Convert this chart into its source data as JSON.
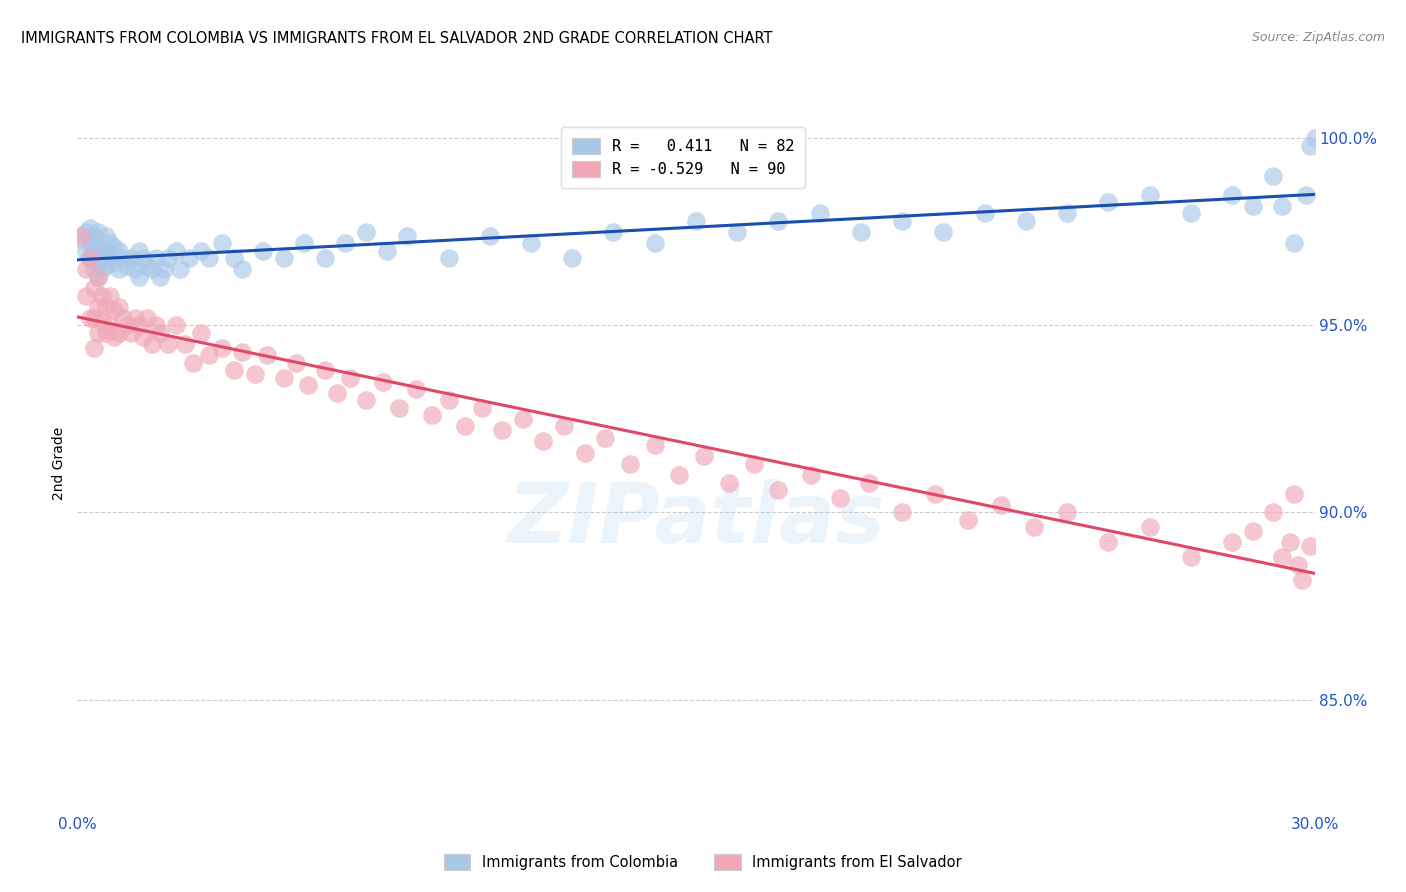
{
  "title": "IMMIGRANTS FROM COLOMBIA VS IMMIGRANTS FROM EL SALVADOR 2ND GRADE CORRELATION CHART",
  "source": "Source: ZipAtlas.com",
  "ylabel": "2nd Grade",
  "legend_colombia": "R =   0.411   N = 82",
  "legend_salvador": "R = -0.529   N = 90",
  "legend_label_colombia": "Immigrants from Colombia",
  "legend_label_salvador": "Immigrants from El Salvador",
  "colombia_color": "#a8c8e8",
  "salvador_color": "#f0a8b8",
  "colombia_line_color": "#1a4fb0",
  "salvador_line_color": "#e04868",
  "xlim": [
    0.0,
    0.3
  ],
  "ylim": [
    0.82,
    1.006
  ],
  "right_ytick_vals": [
    1.0,
    0.95,
    0.9,
    0.85
  ],
  "right_ytick_labels": [
    "100.0%",
    "95.0%",
    "90.0%",
    "85.0%"
  ],
  "colombia_x": [
    0.001,
    0.002,
    0.002,
    0.003,
    0.003,
    0.003,
    0.004,
    0.004,
    0.004,
    0.004,
    0.005,
    0.005,
    0.005,
    0.005,
    0.006,
    0.006,
    0.006,
    0.007,
    0.007,
    0.007,
    0.008,
    0.008,
    0.009,
    0.009,
    0.01,
    0.01,
    0.011,
    0.012,
    0.013,
    0.014,
    0.015,
    0.015,
    0.016,
    0.017,
    0.018,
    0.019,
    0.02,
    0.021,
    0.022,
    0.024,
    0.025,
    0.027,
    0.03,
    0.032,
    0.035,
    0.038,
    0.04,
    0.045,
    0.05,
    0.055,
    0.06,
    0.065,
    0.07,
    0.075,
    0.08,
    0.09,
    0.1,
    0.11,
    0.12,
    0.13,
    0.14,
    0.15,
    0.16,
    0.17,
    0.18,
    0.19,
    0.2,
    0.21,
    0.22,
    0.23,
    0.24,
    0.25,
    0.26,
    0.27,
    0.28,
    0.285,
    0.29,
    0.292,
    0.295,
    0.298,
    0.299,
    0.3
  ],
  "colombia_y": [
    0.973,
    0.97,
    0.975,
    0.968,
    0.972,
    0.976,
    0.965,
    0.97,
    0.974,
    0.968,
    0.963,
    0.967,
    0.971,
    0.975,
    0.965,
    0.97,
    0.968,
    0.966,
    0.97,
    0.974,
    0.968,
    0.972,
    0.967,
    0.971,
    0.965,
    0.97,
    0.968,
    0.966,
    0.968,
    0.965,
    0.963,
    0.97,
    0.968,
    0.966,
    0.965,
    0.968,
    0.963,
    0.965,
    0.968,
    0.97,
    0.965,
    0.968,
    0.97,
    0.968,
    0.972,
    0.968,
    0.965,
    0.97,
    0.968,
    0.972,
    0.968,
    0.972,
    0.975,
    0.97,
    0.974,
    0.968,
    0.974,
    0.972,
    0.968,
    0.975,
    0.972,
    0.978,
    0.975,
    0.978,
    0.98,
    0.975,
    0.978,
    0.975,
    0.98,
    0.978,
    0.98,
    0.983,
    0.985,
    0.98,
    0.985,
    0.982,
    0.99,
    0.982,
    0.972,
    0.985,
    0.998,
    1.0
  ],
  "salvador_x": [
    0.001,
    0.002,
    0.002,
    0.003,
    0.003,
    0.004,
    0.004,
    0.004,
    0.005,
    0.005,
    0.005,
    0.006,
    0.006,
    0.007,
    0.007,
    0.008,
    0.008,
    0.009,
    0.009,
    0.01,
    0.01,
    0.011,
    0.012,
    0.013,
    0.014,
    0.015,
    0.016,
    0.017,
    0.018,
    0.019,
    0.02,
    0.022,
    0.024,
    0.026,
    0.028,
    0.03,
    0.032,
    0.035,
    0.038,
    0.04,
    0.043,
    0.046,
    0.05,
    0.053,
    0.056,
    0.06,
    0.063,
    0.066,
    0.07,
    0.074,
    0.078,
    0.082,
    0.086,
    0.09,
    0.094,
    0.098,
    0.103,
    0.108,
    0.113,
    0.118,
    0.123,
    0.128,
    0.134,
    0.14,
    0.146,
    0.152,
    0.158,
    0.164,
    0.17,
    0.178,
    0.185,
    0.192,
    0.2,
    0.208,
    0.216,
    0.224,
    0.232,
    0.24,
    0.25,
    0.26,
    0.27,
    0.28,
    0.285,
    0.29,
    0.292,
    0.294,
    0.295,
    0.296,
    0.297,
    0.299
  ],
  "salvador_y": [
    0.974,
    0.965,
    0.958,
    0.968,
    0.952,
    0.96,
    0.952,
    0.944,
    0.963,
    0.955,
    0.948,
    0.958,
    0.951,
    0.955,
    0.948,
    0.958,
    0.95,
    0.954,
    0.947,
    0.955,
    0.948,
    0.952,
    0.95,
    0.948,
    0.952,
    0.95,
    0.947,
    0.952,
    0.945,
    0.95,
    0.948,
    0.945,
    0.95,
    0.945,
    0.94,
    0.948,
    0.942,
    0.944,
    0.938,
    0.943,
    0.937,
    0.942,
    0.936,
    0.94,
    0.934,
    0.938,
    0.932,
    0.936,
    0.93,
    0.935,
    0.928,
    0.933,
    0.926,
    0.93,
    0.923,
    0.928,
    0.922,
    0.925,
    0.919,
    0.923,
    0.916,
    0.92,
    0.913,
    0.918,
    0.91,
    0.915,
    0.908,
    0.913,
    0.906,
    0.91,
    0.904,
    0.908,
    0.9,
    0.905,
    0.898,
    0.902,
    0.896,
    0.9,
    0.892,
    0.896,
    0.888,
    0.892,
    0.895,
    0.9,
    0.888,
    0.892,
    0.905,
    0.886,
    0.882,
    0.891
  ]
}
